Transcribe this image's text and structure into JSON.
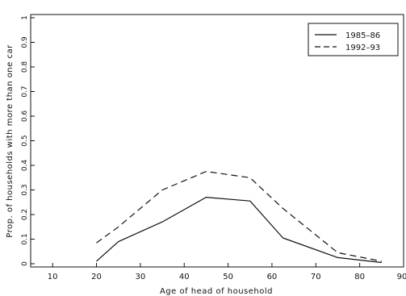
{
  "chart_data": {
    "type": "line",
    "xlabel": "Age of head of household",
    "ylabel": "Prop. of households with more than one car",
    "xlim": [
      5,
      90
    ],
    "ylim": [
      0,
      1
    ],
    "x_ticks": [
      "10",
      "20",
      "30",
      "40",
      "50",
      "60",
      "70",
      "80",
      "90"
    ],
    "y_ticks": [
      "0",
      "0.1",
      "0.2",
      "0.3",
      "0.4",
      "0.5",
      "0.6",
      "0.7",
      "0.8",
      "0.9",
      "1"
    ],
    "legend_position": "top-right",
    "grid": false,
    "series": [
      {
        "name": "1985–86",
        "style": "solid",
        "x": [
          20,
          25,
          35,
          45,
          55,
          62.5,
          75,
          85
        ],
        "y": [
          0.01,
          0.09,
          0.17,
          0.27,
          0.255,
          0.105,
          0.025,
          0.005
        ]
      },
      {
        "name": "1992–93",
        "style": "dashed",
        "x": [
          20,
          25,
          35,
          45,
          55,
          62.5,
          75,
          85
        ],
        "y": [
          0.085,
          0.15,
          0.3,
          0.375,
          0.35,
          0.225,
          0.045,
          0.01
        ]
      }
    ]
  }
}
